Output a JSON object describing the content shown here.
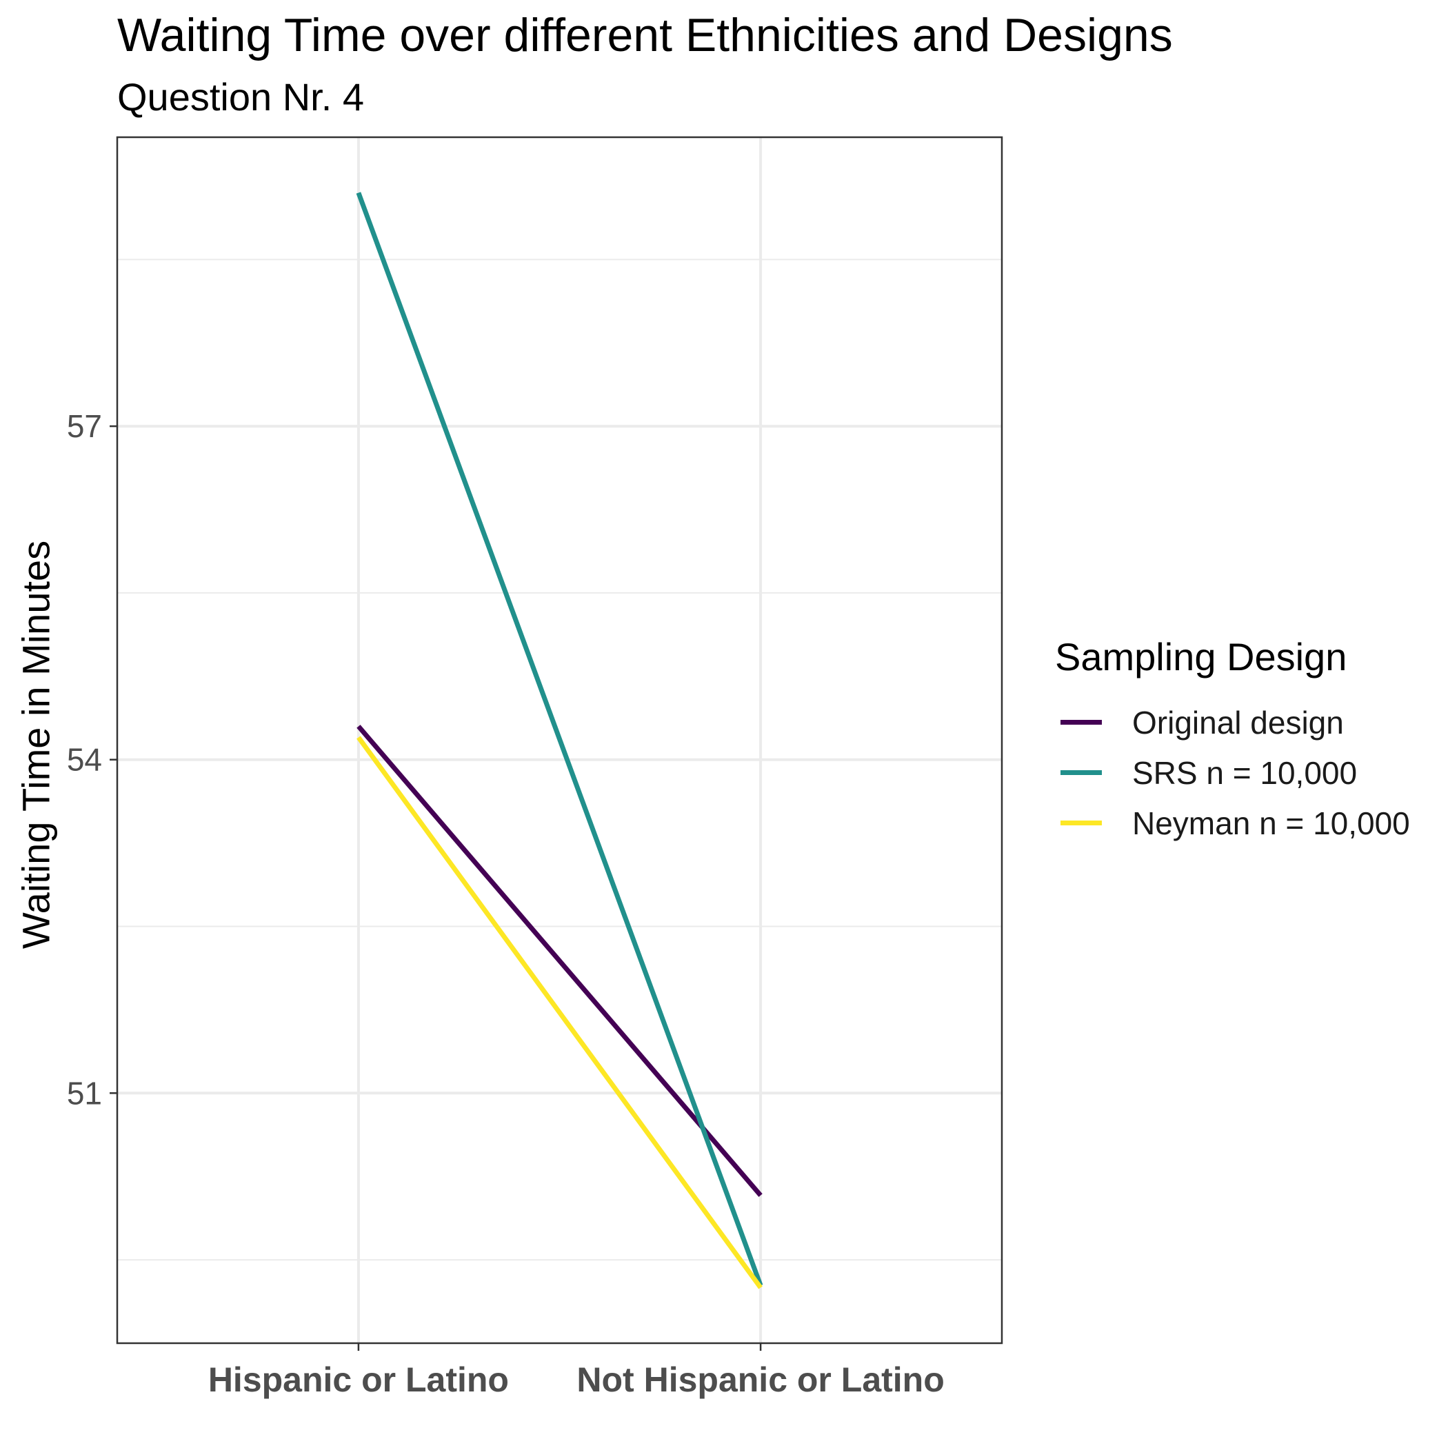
{
  "chart_data": {
    "type": "line",
    "title": "Waiting Time over different Ethnicities and Designs",
    "subtitle": "Question Nr. 4",
    "xlabel": "",
    "ylabel": "Waiting Time in Minutes",
    "categories": [
      "Hispanic or Latino",
      "Not Hispanic or Latino"
    ],
    "y_ticks": [
      51,
      54,
      57
    ],
    "ylim": [
      48.75,
      59.6
    ],
    "grid": true,
    "legend_title": "Sampling Design",
    "legend_position": "right",
    "series": [
      {
        "name": "Original design",
        "color": "#440154",
        "values": [
          54.3,
          50.08
        ]
      },
      {
        "name": "SRS n = 10,000",
        "color": "#21908C",
        "values": [
          59.1,
          49.27
        ]
      },
      {
        "name": "Neyman n = 10,000",
        "color": "#FDE725",
        "values": [
          54.2,
          49.25
        ]
      }
    ]
  }
}
